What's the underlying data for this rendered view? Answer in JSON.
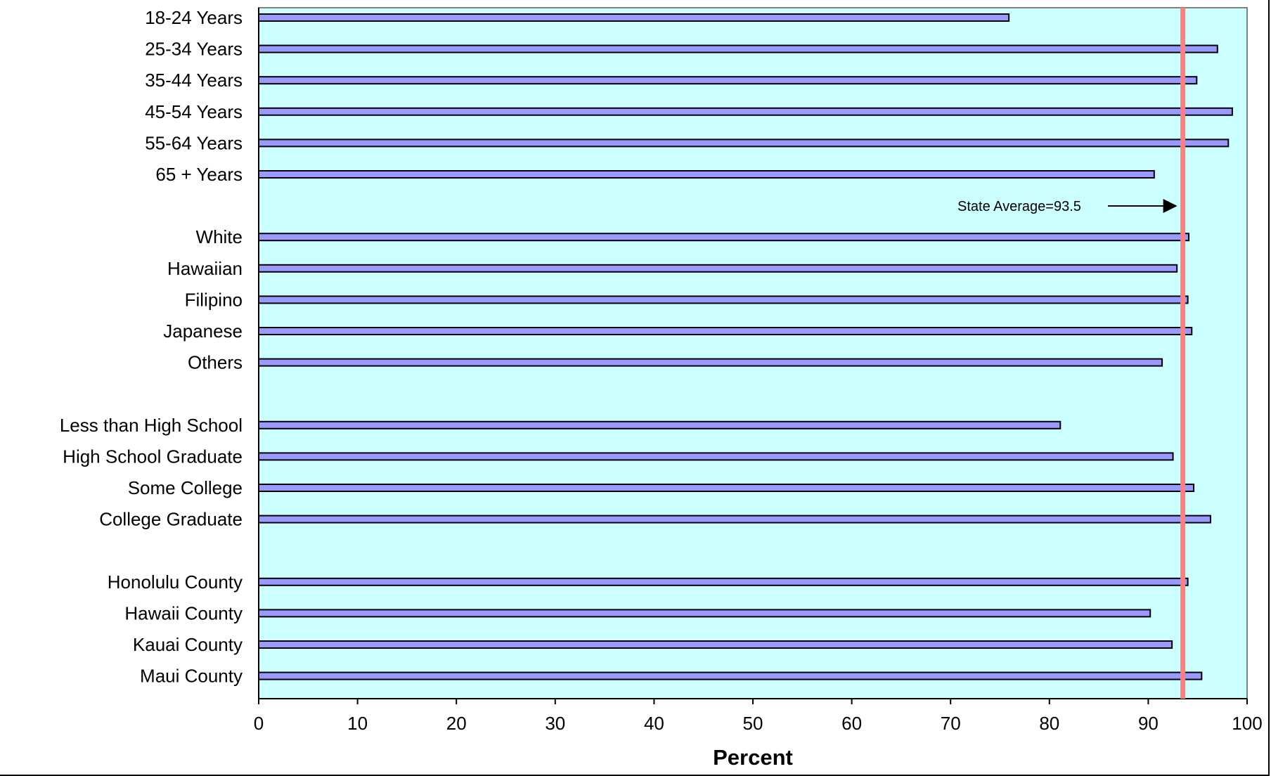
{
  "chart_data": {
    "type": "bar",
    "orientation": "horizontal",
    "categories": [
      "18-24 Years",
      "25-34 Years",
      "35-44 Years",
      "45-54 Years",
      "55-64 Years",
      "65 + Years",
      "",
      "White",
      "Hawaiian",
      "Filipino",
      "Japanese",
      "Others",
      "",
      "Less than High School",
      "High School Graduate",
      "Some College",
      "College Graduate",
      "",
      "Honolulu County",
      "Hawaii County",
      "Kauai County",
      "Maui County"
    ],
    "values": [
      75.9,
      97.0,
      94.9,
      98.5,
      98.1,
      90.6,
      null,
      94.1,
      92.9,
      94.0,
      94.4,
      91.4,
      null,
      81.1,
      92.5,
      94.6,
      96.3,
      null,
      94.0,
      90.2,
      92.4,
      95.4
    ],
    "xlabel": "Percent",
    "ylabel": "",
    "xlim": [
      0,
      100
    ],
    "xticks": [
      "0",
      "10",
      "20",
      "30",
      "40",
      "50",
      "60",
      "70",
      "80",
      "90",
      "100"
    ],
    "grid": false,
    "legend": "none",
    "reference_line": {
      "value": 93.5,
      "label": "State Average=93.5"
    },
    "colors": {
      "plot_background": "#ccffff",
      "bar_fill": "#9999ff",
      "bar_stroke": "#000000",
      "reference_line": "#ff7f7f"
    }
  }
}
